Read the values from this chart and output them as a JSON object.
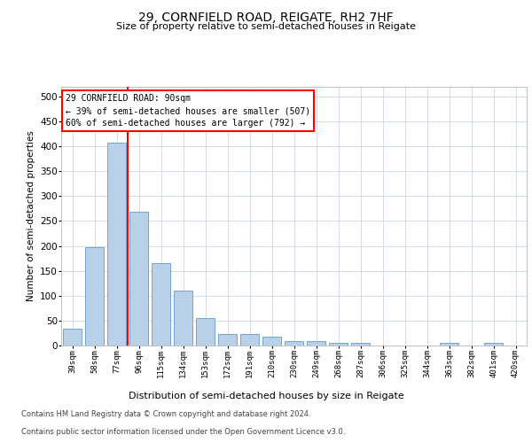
{
  "title1": "29, CORNFIELD ROAD, REIGATE, RH2 7HF",
  "title2": "Size of property relative to semi-detached houses in Reigate",
  "xlabel": "Distribution of semi-detached houses by size in Reigate",
  "ylabel": "Number of semi-detached properties",
  "categories": [
    "39sqm",
    "58sqm",
    "77sqm",
    "96sqm",
    "115sqm",
    "134sqm",
    "153sqm",
    "172sqm",
    "191sqm",
    "210sqm",
    "230sqm",
    "249sqm",
    "268sqm",
    "287sqm",
    "306sqm",
    "325sqm",
    "344sqm",
    "363sqm",
    "382sqm",
    "401sqm",
    "420sqm"
  ],
  "values": [
    33,
    197,
    408,
    268,
    165,
    111,
    55,
    23,
    23,
    18,
    9,
    9,
    5,
    5,
    0,
    0,
    0,
    5,
    0,
    5,
    0
  ],
  "bar_color": "#b8d0e8",
  "bar_edge_color": "#6699cc",
  "red_line_x": 2.5,
  "annotation_text1": "29 CORNFIELD ROAD: 90sqm",
  "annotation_text2": "← 39% of semi-detached houses are smaller (507)",
  "annotation_text3": "60% of semi-detached houses are larger (792) →",
  "ylim": [
    0,
    520
  ],
  "yticks": [
    0,
    50,
    100,
    150,
    200,
    250,
    300,
    350,
    400,
    450,
    500
  ],
  "footer1": "Contains HM Land Registry data © Crown copyright and database right 2024.",
  "footer2": "Contains public sector information licensed under the Open Government Licence v3.0.",
  "background_color": "#ffffff",
  "grid_color": "#ccd8e8"
}
